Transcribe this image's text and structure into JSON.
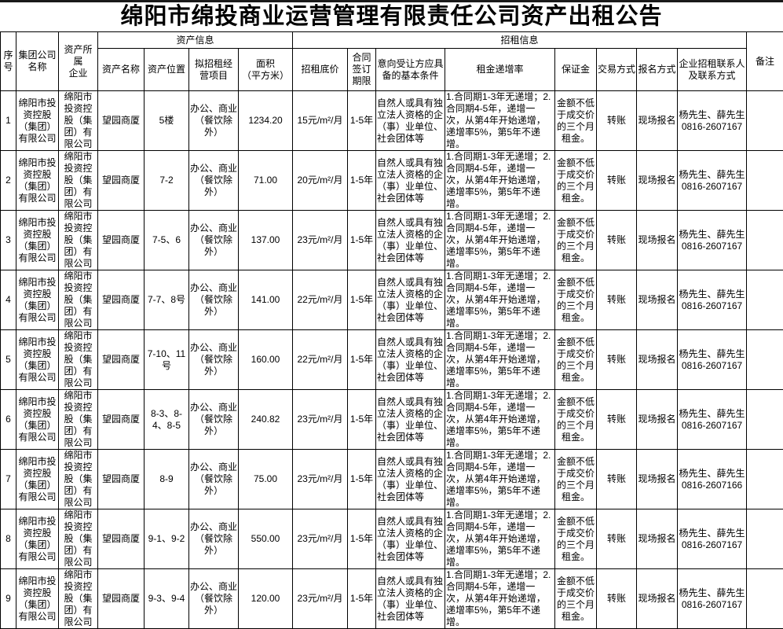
{
  "page": {
    "title": "绵阳市绵投商业运营管理有限责任公司资产出租公告"
  },
  "table": {
    "group_headers": {
      "asset_info": "资产信息",
      "rental_info": "招租信息"
    },
    "columns": {
      "index": "序号",
      "group_company": "集团公司\n名称",
      "asset_owner": "资产所属\n企业",
      "asset_name": "资产名称",
      "asset_location": "资产位置",
      "business_items": "拟招租经\n营项目",
      "area": "面积\n（平方米）",
      "base_price": "招租底价",
      "contract_term": "合同\n签订\n期限",
      "conditions": "意向受让方应具\n备的基本条件",
      "increase_rate": "租金递增率",
      "deposit": "保证金",
      "transaction_method": "交易方式",
      "registration_method": "报名方式",
      "contact": "企业招租联系人\n及联系方式",
      "remarks": "备注"
    },
    "rows": [
      {
        "index": "1",
        "group_company": "绵阳市投资控股（集团）有限公司",
        "asset_owner": "绵阳市投资控股（集团）有限公司",
        "asset_name": "望园商厦",
        "asset_location": "5楼",
        "business_items": "办公、商业\n（餐饮除外）",
        "area": "1234.20",
        "base_price": "15元/m²/月",
        "contract_term": "1-5年",
        "conditions": "自然人或具有独立法人资格的企（事）业单位、社会团体等",
        "increase_rate": "1.合同期1-3年无递增；2.合同期4-5年，递增一次，从第4年开始递增，递增率5%，第5年不递增。",
        "deposit": "金额不低于成交价的三个月租金。",
        "transaction_method": "转账",
        "registration_method": "现场报名",
        "contact_names": "杨先生、薛先生",
        "contact_phone": "0816-2607167",
        "remarks": ""
      },
      {
        "index": "2",
        "group_company": "绵阳市投资控股（集团）有限公司",
        "asset_owner": "绵阳市投资控股（集团）有限公司",
        "asset_name": "望园商厦",
        "asset_location": "7-2",
        "business_items": "办公、商业\n（餐饮除外）",
        "area": "71.00",
        "base_price": "20元/m²/月",
        "contract_term": "1-5年",
        "conditions": "自然人或具有独立法人资格的企（事）业单位、社会团体等",
        "increase_rate": "1.合同期1-3年无递增；2.合同期4-5年，递增一次，从第4年开始递增，递增率5%，第5年不递增。",
        "deposit": "金额不低于成交价的三个月租金。",
        "transaction_method": "转账",
        "registration_method": "现场报名",
        "contact_names": "杨先生、薛先生",
        "contact_phone": "0816-2607167",
        "remarks": ""
      },
      {
        "index": "3",
        "group_company": "绵阳市投资控股（集团）有限公司",
        "asset_owner": "绵阳市投资控股（集团）有限公司",
        "asset_name": "望园商厦",
        "asset_location": "7-5、6",
        "business_items": "办公、商业\n（餐饮除外）",
        "area": "137.00",
        "base_price": "23元/m²/月",
        "contract_term": "1-5年",
        "conditions": "自然人或具有独立法人资格的企（事）业单位、社会团体等",
        "increase_rate": "1.合同期1-3年无递增；2.合同期4-5年，递增一次，从第4年开始递增，递增率5%，第5年不递增。",
        "deposit": "金额不低于成交价的三个月租金。",
        "transaction_method": "转账",
        "registration_method": "现场报名",
        "contact_names": "杨先生、薛先生",
        "contact_phone": "0816-2607167",
        "remarks": ""
      },
      {
        "index": "4",
        "group_company": "绵阳市投资控股（集团）有限公司",
        "asset_owner": "绵阳市投资控股（集团）有限公司",
        "asset_name": "望园商厦",
        "asset_location": "7-7、8号",
        "business_items": "办公、商业\n（餐饮除外）",
        "area": "141.00",
        "base_price": "22元/m²/月",
        "contract_term": "1-5年",
        "conditions": "自然人或具有独立法人资格的企（事）业单位、社会团体等",
        "increase_rate": "1.合同期1-3年无递增；2.合同期4-5年，递增一次，从第4年开始递增，递增率5%，第5年不递增。",
        "deposit": "金额不低于成交价的三个月租金。",
        "transaction_method": "转账",
        "registration_method": "现场报名",
        "contact_names": "杨先生、薛先生",
        "contact_phone": "0816-2607167",
        "remarks": ""
      },
      {
        "index": "5",
        "group_company": "绵阳市投资控股（集团）有限公司",
        "asset_owner": "绵阳市投资控股（集团）有限公司",
        "asset_name": "望园商厦",
        "asset_location": "7-10、11号",
        "business_items": "办公、商业\n（餐饮除外）",
        "area": "160.00",
        "base_price": "22元/m²/月",
        "contract_term": "1-5年",
        "conditions": "自然人或具有独立法人资格的企（事）业单位、社会团体等",
        "increase_rate": "1.合同期1-3年无递增；2.合同期4-5年，递增一次，从第4年开始递增，递增率5%，第5年不递增。",
        "deposit": "金额不低于成交价的三个月租金。",
        "transaction_method": "转账",
        "registration_method": "现场报名",
        "contact_names": "杨先生、薛先生",
        "contact_phone": "0816-2607167",
        "remarks": ""
      },
      {
        "index": "6",
        "group_company": "绵阳市投资控股（集团）有限公司",
        "asset_owner": "绵阳市投资控股（集团）有限公司",
        "asset_name": "望园商厦",
        "asset_location": "8-3、8-4、8-5",
        "business_items": "办公、商业\n（餐饮除外）",
        "area": "240.82",
        "base_price": "23元/m²/月",
        "contract_term": "1-5年",
        "conditions": "自然人或具有独立法人资格的企（事）业单位、社会团体等",
        "increase_rate": "1.合同期1-3年无递增；2.合同期4-5年，递增一次，从第4年开始递增，递增率5%，第5年不递增。",
        "deposit": "金额不低于成交价的三个月租金。",
        "transaction_method": "转账",
        "registration_method": "现场报名",
        "contact_names": "杨先生、薛先生",
        "contact_phone": "0816-2607167",
        "remarks": ""
      },
      {
        "index": "7",
        "group_company": "绵阳市投资控股（集团）有限公司",
        "asset_owner": "绵阳市投资控股（集团）有限公司",
        "asset_name": "望园商厦",
        "asset_location": "8-9",
        "business_items": "办公、商业\n（餐饮除外）",
        "area": "75.00",
        "base_price": "23元/m²/月",
        "contract_term": "1-5年",
        "conditions": "自然人或具有独立法人资格的企（事）业单位、社会团体等",
        "increase_rate": "1.合同期1-3年无递增；2.合同期4-5年，递增一次，从第4年开始递增，递增率5%，第5年不递增。",
        "deposit": "金额不低于成交价的三个月租金。",
        "transaction_method": "转账",
        "registration_method": "现场报名",
        "contact_names": "杨先生、薛先生",
        "contact_phone": "0816-2607166",
        "remarks": ""
      },
      {
        "index": "8",
        "group_company": "绵阳市投资控股（集团）有限公司",
        "asset_owner": "绵阳市投资控股（集团）有限公司",
        "asset_name": "望园商厦",
        "asset_location": "9-1、9-2",
        "business_items": "办公、商业\n（餐饮除外）",
        "area": "550.00",
        "base_price": "23元/m²/月",
        "contract_term": "1-5年",
        "conditions": "自然人或具有独立法人资格的企（事）业单位、社会团体等",
        "increase_rate": "1.合同期1-3年无递增；2.合同期4-5年，递增一次，从第4年开始递增，递增率5%，第5年不递增。",
        "deposit": "金额不低于成交价的三个月租金。",
        "transaction_method": "转账",
        "registration_method": "现场报名",
        "contact_names": "杨先生、薛先生",
        "contact_phone": "0816-2607167",
        "remarks": ""
      },
      {
        "index": "9",
        "group_company": "绵阳市投资控股（集团）有限公司",
        "asset_owner": "绵阳市投资控股（集团）有限公司",
        "asset_name": "望园商厦",
        "asset_location": "9-3、9-4",
        "business_items": "办公、商业\n（餐饮除外）",
        "area": "120.00",
        "base_price": "23元/m²/月",
        "contract_term": "1-5年",
        "conditions": "自然人或具有独立法人资格的企（事）业单位、社会团体等",
        "increase_rate": "1.合同期1-3年无递增；2.合同期4-5年，递增一次，从第4年开始递增，递增率5%，第5年不递增。",
        "deposit": "金额不低于成交价的三个月租金。",
        "transaction_method": "转账",
        "registration_method": "现场报名",
        "contact_names": "杨先生、薛先生",
        "contact_phone": "0816-2607167",
        "remarks": ""
      }
    ]
  }
}
